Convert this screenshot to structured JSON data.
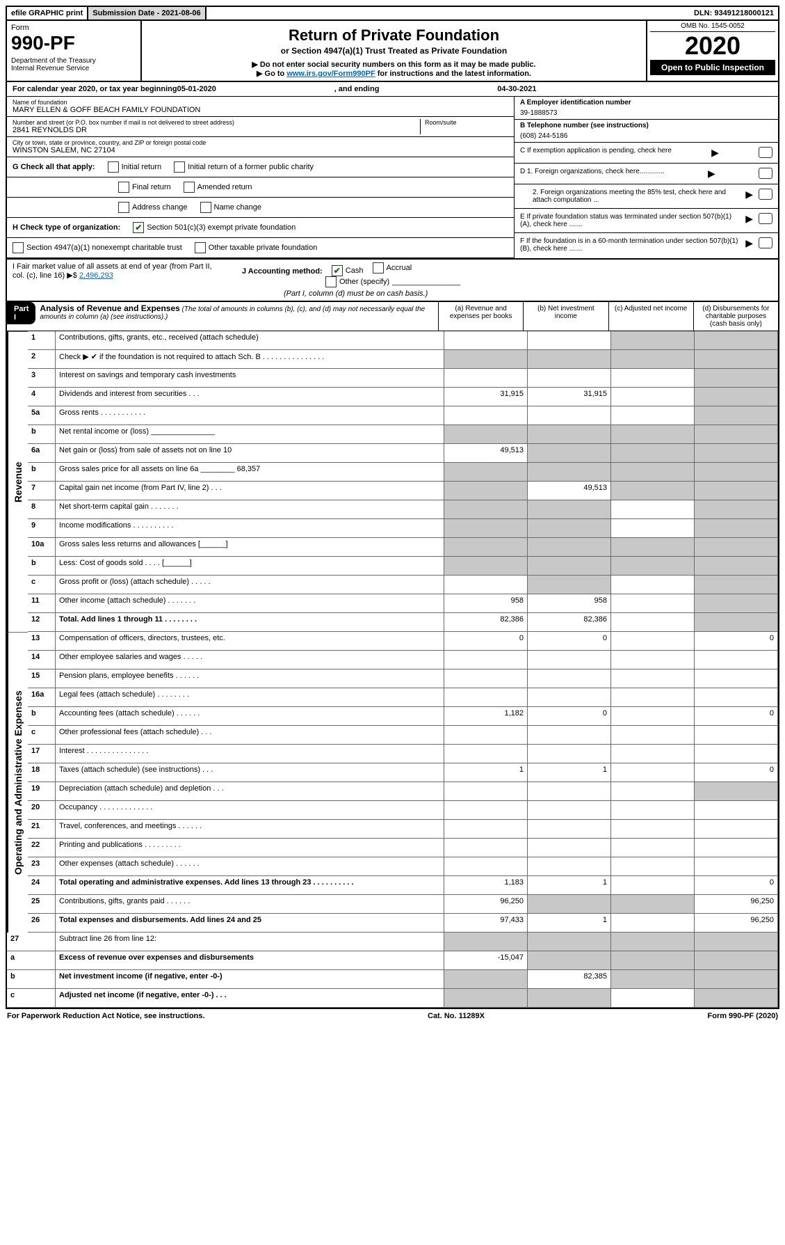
{
  "topbar": {
    "efile": "efile GRAPHIC print",
    "submission": "Submission Date - 2021-08-06",
    "dln": "DLN: 93491218000121"
  },
  "header": {
    "form_label": "Form",
    "form_number": "990-PF",
    "dept": "Department of the Treasury",
    "irs": "Internal Revenue Service",
    "title": "Return of Private Foundation",
    "subtitle": "or Section 4947(a)(1) Trust Treated as Private Foundation",
    "warn1": "▶ Do not enter social security numbers on this form as it may be made public.",
    "warn2_prefix": "▶ Go to ",
    "warn2_link": "www.irs.gov/Form990PF",
    "warn2_suffix": " for instructions and the latest information.",
    "omb": "OMB No. 1545-0052",
    "year": "2020",
    "open": "Open to Public Inspection"
  },
  "calendar": {
    "prefix": "For calendar year 2020, or tax year beginning ",
    "begin": "05-01-2020",
    "mid": " , and ending ",
    "end": "04-30-2021"
  },
  "entity": {
    "name_label": "Name of foundation",
    "name": "MARY ELLEN & GOFF BEACH FAMILY FOUNDATION",
    "street_label": "Number and street (or P.O. box number if mail is not delivered to street address)",
    "room_label": "Room/suite",
    "street": "2841 REYNOLDS DR",
    "city_label": "City or town, state or province, country, and ZIP or foreign postal code",
    "city": "WINSTON SALEM, NC  27104",
    "ein_label": "A Employer identification number",
    "ein": "39-1888573",
    "phone_label": "B Telephone number (see instructions)",
    "phone": "(608) 244-5186"
  },
  "right_items": {
    "c": "C  If exemption application is pending, check here",
    "d1": "D 1. Foreign organizations, check here.............",
    "d2": "2. Foreign organizations meeting the 85% test, check here and attach computation ...",
    "e": "E  If private foundation status was terminated under section 507(b)(1)(A), check here .......",
    "f": "F  If the foundation is in a 60-month termination under section 507(b)(1)(B), check here ......."
  },
  "checks": {
    "g_label": "G Check all that apply:",
    "initial": "Initial return",
    "initial_former": "Initial return of a former public charity",
    "final": "Final return",
    "amended": "Amended return",
    "address": "Address change",
    "name_change": "Name change",
    "h_label": "H Check type of organization:",
    "h_501c3": "Section 501(c)(3) exempt private foundation",
    "h_4947": "Section 4947(a)(1) nonexempt charitable trust",
    "h_other_tax": "Other taxable private foundation",
    "i_label": "I Fair market value of all assets at end of year (from Part II, col. (c), line 16) ▶$",
    "i_value": "2,496,293",
    "j_label": "J Accounting method:",
    "j_cash": "Cash",
    "j_accrual": "Accrual",
    "j_other": "Other (specify)",
    "j_note": "(Part I, column (d) must be on cash basis.)"
  },
  "part1": {
    "label": "Part I",
    "title": "Analysis of Revenue and Expenses",
    "note": " (The total of amounts in columns (b), (c), and (d) may not necessarily equal the amounts in column (a) (see instructions).)",
    "col_a": "(a)   Revenue and expenses per books",
    "col_b": "(b)  Net investment income",
    "col_c": "(c)  Adjusted net income",
    "col_d": "(d)  Disbursements for charitable purposes (cash basis only)"
  },
  "sides": {
    "revenue": "Revenue",
    "expenses": "Operating and Administrative Expenses"
  },
  "rows": [
    {
      "n": "1",
      "d": "Contributions, gifts, grants, etc., received (attach schedule)",
      "a": "",
      "b": "",
      "c": "shade",
      "dd": "shade"
    },
    {
      "n": "2",
      "d": "Check ▶ ✔ if the foundation is not required to attach Sch. B   .  .  .  .  .  .  .  .  .  .  .  .  .  .  .",
      "a": "shade",
      "b": "shade",
      "c": "shade",
      "dd": "shade"
    },
    {
      "n": "3",
      "d": "Interest on savings and temporary cash investments",
      "a": "",
      "b": "",
      "c": "",
      "dd": "shade"
    },
    {
      "n": "4",
      "d": "Dividends and interest from securities   .    .    .",
      "a": "31,915",
      "b": "31,915",
      "c": "",
      "dd": "shade"
    },
    {
      "n": "5a",
      "d": "Gross rents   .   .   .   .   .   .   .   .   .   .   .",
      "a": "",
      "b": "",
      "c": "",
      "dd": "shade"
    },
    {
      "n": "b",
      "d": "Net rental income or (loss)   _______________",
      "a": "shade",
      "b": "shade",
      "c": "shade",
      "dd": "shade"
    },
    {
      "n": "6a",
      "d": "Net gain or (loss) from sale of assets not on line 10",
      "a": "49,513",
      "b": "shade",
      "c": "shade",
      "dd": "shade"
    },
    {
      "n": "b",
      "d": "Gross sales price for all assets on line 6a ________ 68,357",
      "a": "shade",
      "b": "shade",
      "c": "shade",
      "dd": "shade"
    },
    {
      "n": "7",
      "d": "Capital gain net income (from Part IV, line 2)   .   .   .",
      "a": "shade",
      "b": "49,513",
      "c": "shade",
      "dd": "shade"
    },
    {
      "n": "8",
      "d": "Net short-term capital gain   .   .   .   .   .   .   .",
      "a": "shade",
      "b": "shade",
      "c": "",
      "dd": "shade"
    },
    {
      "n": "9",
      "d": "Income modifications   .   .   .   .   .   .   .   .   .   .",
      "a": "shade",
      "b": "shade",
      "c": "",
      "dd": "shade"
    },
    {
      "n": "10a",
      "d": "Gross sales less returns and allowances  [______]",
      "a": "shade",
      "b": "shade",
      "c": "shade",
      "dd": "shade"
    },
    {
      "n": "b",
      "d": "Less: Cost of goods sold     .   .   .   .   [______]",
      "a": "shade",
      "b": "shade",
      "c": "shade",
      "dd": "shade"
    },
    {
      "n": "c",
      "d": "Gross profit or (loss) (attach schedule)   .   .   .   .   .",
      "a": "",
      "b": "shade",
      "c": "",
      "dd": "shade"
    },
    {
      "n": "11",
      "d": "Other income (attach schedule)   .   .   .   .   .   .   .",
      "a": "958",
      "b": "958",
      "c": "",
      "dd": "shade"
    },
    {
      "n": "12",
      "d": "Total. Add lines 1 through 11   .   .   .   .   .   .   .   .",
      "a": "82,386",
      "b": "82,386",
      "c": "",
      "dd": "shade",
      "bold": true
    }
  ],
  "ops_rows": [
    {
      "n": "13",
      "d": "Compensation of officers, directors, trustees, etc.",
      "a": "0",
      "b": "0",
      "c": "",
      "dd": "0"
    },
    {
      "n": "14",
      "d": "Other employee salaries and wages   .   .   .   .   .",
      "a": "",
      "b": "",
      "c": "",
      "dd": ""
    },
    {
      "n": "15",
      "d": "Pension plans, employee benefits   .   .   .   .   .   .",
      "a": "",
      "b": "",
      "c": "",
      "dd": ""
    },
    {
      "n": "16a",
      "d": "Legal fees (attach schedule)   .   .   .   .   .   .   .   .",
      "a": "",
      "b": "",
      "c": "",
      "dd": ""
    },
    {
      "n": "b",
      "d": "Accounting fees (attach schedule)   .   .   .   .   .   .",
      "a": "1,182",
      "b": "0",
      "c": "",
      "dd": "0"
    },
    {
      "n": "c",
      "d": "Other professional fees (attach schedule)    .   .   .",
      "a": "",
      "b": "",
      "c": "",
      "dd": ""
    },
    {
      "n": "17",
      "d": "Interest   .   .   .   .   .   .   .   .   .   .   .   .   .   .   .",
      "a": "",
      "b": "",
      "c": "",
      "dd": ""
    },
    {
      "n": "18",
      "d": "Taxes (attach schedule) (see instructions)    .   .   .",
      "a": "1",
      "b": "1",
      "c": "",
      "dd": "0"
    },
    {
      "n": "19",
      "d": "Depreciation (attach schedule) and depletion   .   .   .",
      "a": "",
      "b": "",
      "c": "",
      "dd": "shade"
    },
    {
      "n": "20",
      "d": "Occupancy   .   .   .   .   .   .   .   .   .   .   .   .   .",
      "a": "",
      "b": "",
      "c": "",
      "dd": ""
    },
    {
      "n": "21",
      "d": "Travel, conferences, and meetings   .   .   .   .   .   .",
      "a": "",
      "b": "",
      "c": "",
      "dd": ""
    },
    {
      "n": "22",
      "d": "Printing and publications   .   .   .   .   .   .   .   .   .",
      "a": "",
      "b": "",
      "c": "",
      "dd": ""
    },
    {
      "n": "23",
      "d": "Other expenses (attach schedule)   .   .   .   .   .   .",
      "a": "",
      "b": "",
      "c": "",
      "dd": ""
    },
    {
      "n": "24",
      "d": "Total operating and administrative expenses. Add lines 13 through 23   .   .   .   .   .   .   .   .   .   .",
      "a": "1,183",
      "b": "1",
      "c": "",
      "dd": "0",
      "bold": true
    },
    {
      "n": "25",
      "d": "Contributions, gifts, grants paid    .   .   .   .   .   .",
      "a": "96,250",
      "b": "shade",
      "c": "shade",
      "dd": "96,250"
    },
    {
      "n": "26",
      "d": "Total expenses and disbursements. Add lines 24 and 25",
      "a": "97,433",
      "b": "1",
      "c": "",
      "dd": "96,250",
      "bold": true
    }
  ],
  "tail_rows": [
    {
      "n": "27",
      "d": "Subtract line 26 from line 12:",
      "a": "shade",
      "b": "shade",
      "c": "shade",
      "dd": "shade"
    },
    {
      "n": "a",
      "d": "Excess of revenue over expenses and disbursements",
      "a": "-15,047",
      "b": "shade",
      "c": "shade",
      "dd": "shade",
      "bold": true
    },
    {
      "n": "b",
      "d": "Net investment income (if negative, enter -0-)",
      "a": "shade",
      "b": "82,385",
      "c": "shade",
      "dd": "shade",
      "bold": true
    },
    {
      "n": "c",
      "d": "Adjusted net income (if negative, enter -0-)   .   .   .",
      "a": "shade",
      "b": "shade",
      "c": "",
      "dd": "shade",
      "bold": true
    }
  ],
  "footer": {
    "left": "For Paperwork Reduction Act Notice, see instructions.",
    "mid": "Cat. No. 11289X",
    "right": "Form 990-PF (2020)"
  }
}
